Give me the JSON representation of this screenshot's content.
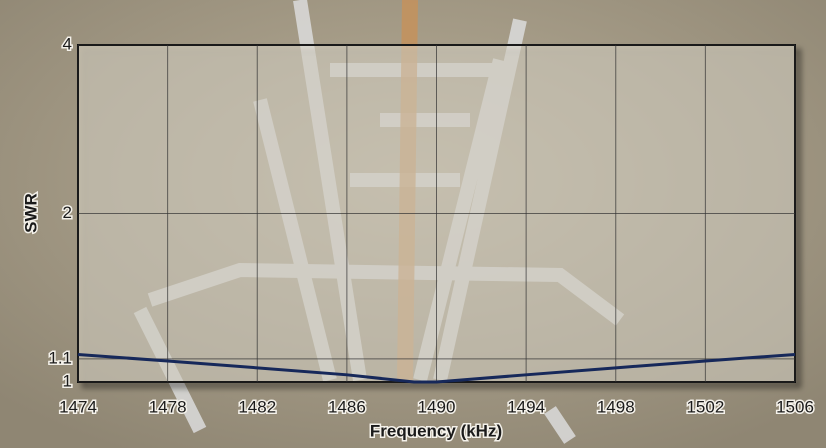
{
  "chart_data": {
    "type": "line",
    "x_label": "Frequency (kHz)",
    "y_label": "SWR",
    "x": [
      1474,
      1478,
      1482,
      1486,
      1489,
      1490,
      1494,
      1498,
      1502,
      1506
    ],
    "series": [
      {
        "color": "#16285a",
        "values": [
          1.12,
          1.09,
          1.06,
          1.03,
          1.0,
          1.0,
          1.03,
          1.06,
          1.09,
          1.12
        ]
      }
    ],
    "xlim": [
      1474,
      1506
    ],
    "xticks": [
      1474,
      1478,
      1482,
      1486,
      1490,
      1494,
      1498,
      1502,
      1506
    ],
    "ylim": [
      1,
      4
    ],
    "yticks": [
      1,
      1.1,
      2,
      4
    ],
    "y_log": true,
    "grid": true
  }
}
